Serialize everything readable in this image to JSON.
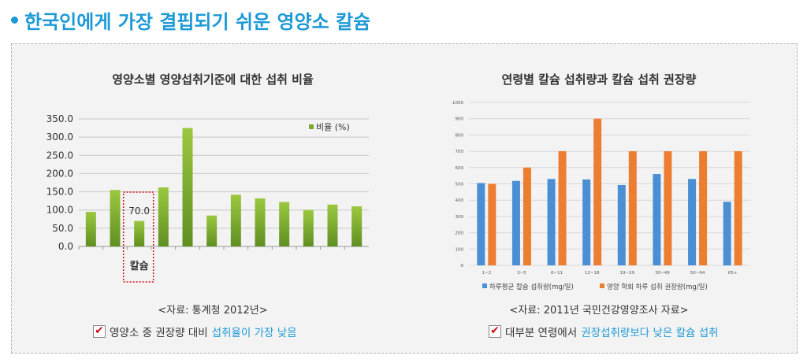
{
  "title": "한국인에게 가장 결핍되기 쉬운 영양소 칼슘",
  "chart_data": [
    {
      "type": "bar",
      "title": "영양소별 영양섭취기준에 대한 섭취 비율",
      "ylim": [
        0,
        350
      ],
      "yticks": [
        "0.0",
        "50.0",
        "100.0",
        "150.0",
        "200.0",
        "250.0",
        "300.0",
        "350.0"
      ],
      "legend": "비율 (%)",
      "legend_position": "top-right",
      "color": "#7aab2e",
      "values": [
        95,
        155,
        70,
        162,
        325,
        85,
        142,
        132,
        122,
        100,
        115,
        110
      ],
      "highlight": {
        "index": 2,
        "label": "칼슘",
        "value_label": "70.0"
      }
    },
    {
      "type": "bar",
      "title": "연령별 칼슘 섭취량과 칼슘 섭취 권장량",
      "ylim": [
        0,
        1000
      ],
      "yticks": [
        "0",
        "100",
        "200",
        "300",
        "400",
        "500",
        "600",
        "700",
        "800",
        "900",
        "1000"
      ],
      "categories": [
        "1~2",
        "3~5",
        "6~11",
        "12~18",
        "19~29",
        "30~49",
        "50~64",
        "65+"
      ],
      "series": [
        {
          "name": "하루평균 칼슘 섭취량(mg/일)",
          "color": "#4a8fd4",
          "values": [
            505,
            518,
            530,
            527,
            493,
            560,
            530,
            390
          ]
        },
        {
          "name": "영양 학회 하루 섭취 권장량(mg/일)",
          "color": "#ed7d31",
          "values": [
            500,
            600,
            700,
            900,
            700,
            700,
            700,
            700
          ]
        }
      ],
      "legend_position": "bottom"
    }
  ],
  "left": {
    "source": "<자료: 통계청 2012년>",
    "note_plain": "영양소 중 권장량 대비 ",
    "note_highlight": "섭취율이 가장 낮음"
  },
  "right": {
    "source": "<자료: 2011년 국민건강영양조사 자료>",
    "note_plain": "대부분 연령에서 ",
    "note_highlight": "권장섭취량보다 낮은 칼슘 섭취"
  },
  "check_glyph": "✔"
}
